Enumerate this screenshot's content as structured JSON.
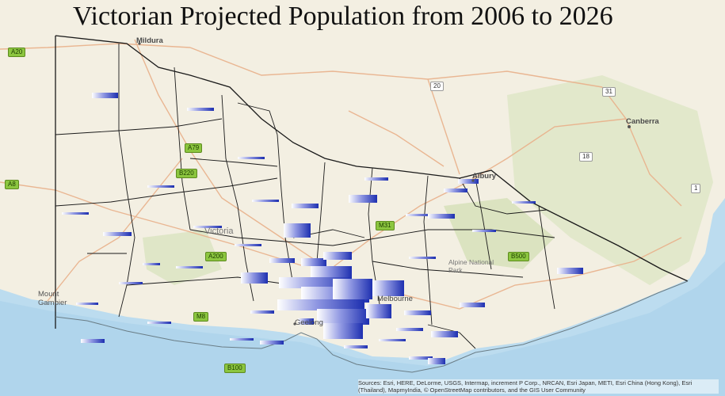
{
  "title": "Victorian Projected Population from 2006 to 2026",
  "places": [
    {
      "id": "mildura",
      "label": "Mildura"
    },
    {
      "id": "canberra",
      "label": "Canberra"
    },
    {
      "id": "albury",
      "label": "Albury"
    },
    {
      "id": "victoria",
      "label": "Victoria"
    },
    {
      "id": "alpine-np",
      "label": "Alpine National Park"
    },
    {
      "id": "mount-gambier",
      "label": "Mount Gambier"
    },
    {
      "id": "geelong",
      "label": "Geelong"
    },
    {
      "id": "melbourne",
      "label": "Melbourne"
    }
  ],
  "road_shields": [
    {
      "id": "a20",
      "label": "A20",
      "style": "green"
    },
    {
      "id": "a79",
      "label": "A79",
      "style": "green"
    },
    {
      "id": "b220",
      "label": "B220",
      "style": "green"
    },
    {
      "id": "a8",
      "label": "A8",
      "style": "green"
    },
    {
      "id": "m31",
      "label": "M31",
      "style": "green"
    },
    {
      "id": "a200",
      "label": "A200",
      "style": "green"
    },
    {
      "id": "m8",
      "label": "M8",
      "style": "green"
    },
    {
      "id": "b500",
      "label": "B500",
      "style": "green"
    },
    {
      "id": "b100",
      "label": "B100",
      "style": "green"
    },
    {
      "id": "20",
      "label": "20",
      "style": "white"
    },
    {
      "id": "31",
      "label": "31",
      "style": "white"
    },
    {
      "id": "18",
      "label": "18",
      "style": "white"
    },
    {
      "id": "1",
      "label": "1",
      "style": "white"
    }
  ],
  "attribution": "Sources: Esri, HERE, DeLorme, USGS, Intermap, increment P Corp., NRCAN, Esri Japan, METI, Esri China (Hong Kong), Esri (Thailand), MapmyIndia, © OpenStreetMap contributors, and the GIS User Community",
  "colors": {
    "land": "#f3efe2",
    "ocean": "#bcdcef",
    "forest": "#d7e3bf",
    "roads": "#e9b08a",
    "lga_border": "#1a1a1a",
    "bar_start": "#ffffff",
    "bar_end": "#1d2fb0"
  }
}
